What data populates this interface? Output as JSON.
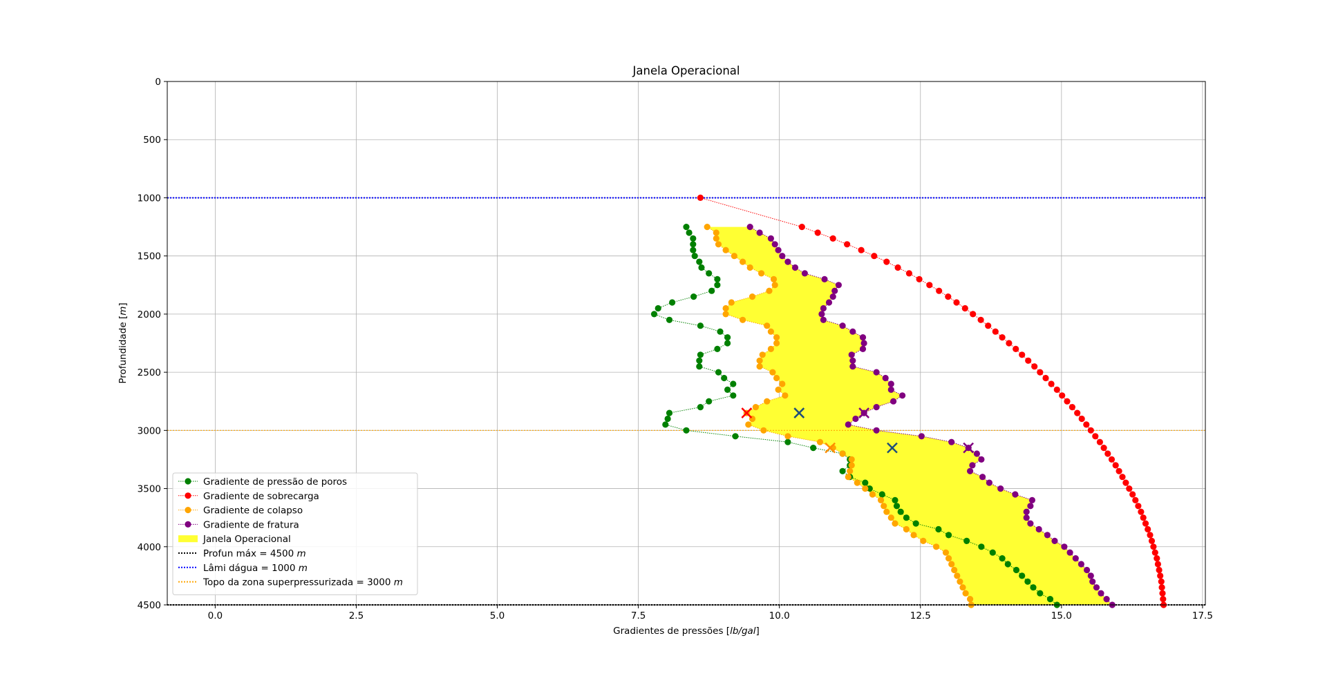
{
  "chart_data": {
    "type": "line",
    "title": "Janela Operacional",
    "xlabel": "Gradientes de pressões [lb/gal]",
    "ylabel": "Profundidade [m]",
    "xlim": [
      -0.85,
      17.55
    ],
    "ylim": [
      4500,
      0
    ],
    "y_inverted": true,
    "grid": true,
    "legend_position": "lower-left",
    "x_ticks": [
      "0.0",
      "2.5",
      "5.0",
      "7.5",
      "10.0",
      "12.5",
      "15.0",
      "17.5"
    ],
    "x_tick_values": [
      0,
      2.5,
      5,
      7.5,
      10,
      12.5,
      15,
      17.5
    ],
    "y_ticks": [
      "0",
      "500",
      "1000",
      "1500",
      "2000",
      "2500",
      "3000",
      "3500",
      "4000",
      "4500"
    ],
    "y_tick_values": [
      0,
      500,
      1000,
      1500,
      2000,
      2500,
      3000,
      3500,
      4000,
      4500
    ],
    "series": [
      {
        "name": "Gradiente de pressão de poros",
        "color": "#008000",
        "marker": "circle",
        "line": "dotted",
        "points": [
          [
            8.35,
            1250
          ],
          [
            8.4,
            1300
          ],
          [
            8.47,
            1350
          ],
          [
            8.47,
            1400
          ],
          [
            8.47,
            1450
          ],
          [
            8.5,
            1500
          ],
          [
            8.58,
            1550
          ],
          [
            8.62,
            1600
          ],
          [
            8.75,
            1650
          ],
          [
            8.9,
            1700
          ],
          [
            8.9,
            1750
          ],
          [
            8.8,
            1800
          ],
          [
            8.48,
            1850
          ],
          [
            8.1,
            1900
          ],
          [
            7.85,
            1950
          ],
          [
            7.78,
            2000
          ],
          [
            8.05,
            2050
          ],
          [
            8.6,
            2100
          ],
          [
            8.95,
            2150
          ],
          [
            9.08,
            2200
          ],
          [
            9.08,
            2250
          ],
          [
            8.9,
            2300
          ],
          [
            8.6,
            2350
          ],
          [
            8.58,
            2400
          ],
          [
            8.58,
            2450
          ],
          [
            8.92,
            2500
          ],
          [
            9.02,
            2550
          ],
          [
            9.18,
            2600
          ],
          [
            9.08,
            2650
          ],
          [
            9.18,
            2700
          ],
          [
            8.75,
            2750
          ],
          [
            8.6,
            2800
          ],
          [
            8.05,
            2850
          ],
          [
            8.02,
            2900
          ],
          [
            7.98,
            2950
          ],
          [
            8.35,
            3000
          ],
          [
            9.22,
            3050
          ],
          [
            10.15,
            3100
          ],
          [
            10.6,
            3150
          ],
          [
            11.12,
            3200
          ],
          [
            11.25,
            3250
          ],
          [
            11.25,
            3300
          ],
          [
            11.12,
            3350
          ],
          [
            11.25,
            3400
          ],
          [
            11.52,
            3450
          ],
          [
            11.6,
            3500
          ],
          [
            11.82,
            3550
          ],
          [
            12.05,
            3600
          ],
          [
            12.08,
            3650
          ],
          [
            12.15,
            3700
          ],
          [
            12.25,
            3750
          ],
          [
            12.42,
            3800
          ],
          [
            12.82,
            3850
          ],
          [
            13.0,
            3900
          ],
          [
            13.32,
            3950
          ],
          [
            13.58,
            4000
          ],
          [
            13.78,
            4050
          ],
          [
            13.95,
            4100
          ],
          [
            14.05,
            4150
          ],
          [
            14.2,
            4200
          ],
          [
            14.3,
            4250
          ],
          [
            14.4,
            4300
          ],
          [
            14.5,
            4350
          ],
          [
            14.62,
            4400
          ],
          [
            14.8,
            4450
          ],
          [
            14.92,
            4500
          ]
        ]
      },
      {
        "name": "Gradiente de sobrecarga",
        "color": "#ff0000",
        "marker": "circle",
        "line": "dotted",
        "points": [
          [
            8.6,
            1000
          ],
          [
            10.4,
            1250
          ],
          [
            10.68,
            1300
          ],
          [
            10.95,
            1350
          ],
          [
            11.2,
            1400
          ],
          [
            11.45,
            1450
          ],
          [
            11.68,
            1500
          ],
          [
            11.9,
            1550
          ],
          [
            12.1,
            1600
          ],
          [
            12.3,
            1650
          ],
          [
            12.48,
            1700
          ],
          [
            12.66,
            1750
          ],
          [
            12.83,
            1800
          ],
          [
            12.99,
            1850
          ],
          [
            13.14,
            1900
          ],
          [
            13.29,
            1950
          ],
          [
            13.43,
            2000
          ],
          [
            13.57,
            2050
          ],
          [
            13.7,
            2100
          ],
          [
            13.83,
            2150
          ],
          [
            13.95,
            2200
          ],
          [
            14.07,
            2250
          ],
          [
            14.19,
            2300
          ],
          [
            14.3,
            2350
          ],
          [
            14.41,
            2400
          ],
          [
            14.52,
            2450
          ],
          [
            14.62,
            2500
          ],
          [
            14.72,
            2550
          ],
          [
            14.82,
            2600
          ],
          [
            14.92,
            2650
          ],
          [
            15.01,
            2700
          ],
          [
            15.1,
            2750
          ],
          [
            15.19,
            2800
          ],
          [
            15.28,
            2850
          ],
          [
            15.36,
            2900
          ],
          [
            15.44,
            2950
          ],
          [
            15.52,
            3000
          ],
          [
            15.6,
            3050
          ],
          [
            15.68,
            3100
          ],
          [
            15.75,
            3150
          ],
          [
            15.82,
            3200
          ],
          [
            15.89,
            3250
          ],
          [
            15.96,
            3300
          ],
          [
            16.02,
            3350
          ],
          [
            16.08,
            3400
          ],
          [
            16.14,
            3450
          ],
          [
            16.2,
            3500
          ],
          [
            16.26,
            3550
          ],
          [
            16.31,
            3600
          ],
          [
            16.36,
            3650
          ],
          [
            16.41,
            3700
          ],
          [
            16.45,
            3750
          ],
          [
            16.49,
            3800
          ],
          [
            16.53,
            3850
          ],
          [
            16.57,
            3900
          ],
          [
            16.6,
            3950
          ],
          [
            16.63,
            4000
          ],
          [
            16.66,
            4050
          ],
          [
            16.69,
            4100
          ],
          [
            16.71,
            4150
          ],
          [
            16.73,
            4200
          ],
          [
            16.75,
            4250
          ],
          [
            16.77,
            4300
          ],
          [
            16.78,
            4350
          ],
          [
            16.79,
            4400
          ],
          [
            16.8,
            4450
          ],
          [
            16.81,
            4500
          ]
        ]
      },
      {
        "name": "Gradiente de colapso",
        "color": "#ffa500",
        "marker": "circle",
        "line": "dotted",
        "points": [
          [
            8.72,
            1250
          ],
          [
            8.88,
            1300
          ],
          [
            8.88,
            1350
          ],
          [
            8.92,
            1400
          ],
          [
            9.05,
            1450
          ],
          [
            9.2,
            1500
          ],
          [
            9.35,
            1550
          ],
          [
            9.48,
            1600
          ],
          [
            9.68,
            1650
          ],
          [
            9.9,
            1700
          ],
          [
            9.92,
            1750
          ],
          [
            9.82,
            1800
          ],
          [
            9.52,
            1850
          ],
          [
            9.15,
            1900
          ],
          [
            9.05,
            1950
          ],
          [
            9.05,
            2000
          ],
          [
            9.35,
            2050
          ],
          [
            9.78,
            2100
          ],
          [
            9.85,
            2150
          ],
          [
            9.95,
            2200
          ],
          [
            9.95,
            2250
          ],
          [
            9.85,
            2300
          ],
          [
            9.7,
            2350
          ],
          [
            9.65,
            2400
          ],
          [
            9.65,
            2450
          ],
          [
            9.88,
            2500
          ],
          [
            9.95,
            2550
          ],
          [
            10.05,
            2600
          ],
          [
            9.98,
            2650
          ],
          [
            10.1,
            2700
          ],
          [
            9.78,
            2750
          ],
          [
            9.58,
            2800
          ],
          [
            9.42,
            2850
          ],
          [
            9.52,
            2900
          ],
          [
            9.45,
            2950
          ],
          [
            9.72,
            3000
          ],
          [
            10.15,
            3050
          ],
          [
            10.72,
            3100
          ],
          [
            10.95,
            3150
          ],
          [
            11.12,
            3200
          ],
          [
            11.28,
            3250
          ],
          [
            11.28,
            3300
          ],
          [
            11.25,
            3350
          ],
          [
            11.22,
            3400
          ],
          [
            11.38,
            3450
          ],
          [
            11.52,
            3500
          ],
          [
            11.65,
            3550
          ],
          [
            11.8,
            3600
          ],
          [
            11.85,
            3650
          ],
          [
            11.9,
            3700
          ],
          [
            11.98,
            3750
          ],
          [
            12.05,
            3800
          ],
          [
            12.25,
            3850
          ],
          [
            12.38,
            3900
          ],
          [
            12.55,
            3950
          ],
          [
            12.78,
            4000
          ],
          [
            12.95,
            4050
          ],
          [
            13.0,
            4100
          ],
          [
            13.05,
            4150
          ],
          [
            13.1,
            4200
          ],
          [
            13.15,
            4250
          ],
          [
            13.2,
            4300
          ],
          [
            13.25,
            4350
          ],
          [
            13.3,
            4400
          ],
          [
            13.38,
            4450
          ],
          [
            13.4,
            4500
          ]
        ]
      },
      {
        "name": "Gradiente de fratura",
        "color": "#800080",
        "marker": "circle",
        "line": "dotted",
        "points": [
          [
            9.48,
            1250
          ],
          [
            9.65,
            1300
          ],
          [
            9.85,
            1350
          ],
          [
            9.92,
            1400
          ],
          [
            9.98,
            1450
          ],
          [
            10.05,
            1500
          ],
          [
            10.15,
            1550
          ],
          [
            10.28,
            1600
          ],
          [
            10.45,
            1650
          ],
          [
            10.8,
            1700
          ],
          [
            11.05,
            1750
          ],
          [
            10.98,
            1800
          ],
          [
            10.95,
            1850
          ],
          [
            10.88,
            1900
          ],
          [
            10.78,
            1950
          ],
          [
            10.75,
            2000
          ],
          [
            10.78,
            2050
          ],
          [
            11.12,
            2100
          ],
          [
            11.3,
            2150
          ],
          [
            11.48,
            2200
          ],
          [
            11.5,
            2250
          ],
          [
            11.48,
            2300
          ],
          [
            11.28,
            2350
          ],
          [
            11.3,
            2400
          ],
          [
            11.3,
            2450
          ],
          [
            11.72,
            2500
          ],
          [
            11.88,
            2550
          ],
          [
            11.98,
            2600
          ],
          [
            11.98,
            2650
          ],
          [
            12.18,
            2700
          ],
          [
            12.02,
            2750
          ],
          [
            11.72,
            2800
          ],
          [
            11.5,
            2850
          ],
          [
            11.35,
            2900
          ],
          [
            11.22,
            2950
          ],
          [
            11.72,
            3000
          ],
          [
            12.52,
            3050
          ],
          [
            13.05,
            3100
          ],
          [
            13.35,
            3150
          ],
          [
            13.5,
            3200
          ],
          [
            13.58,
            3250
          ],
          [
            13.42,
            3300
          ],
          [
            13.38,
            3350
          ],
          [
            13.6,
            3400
          ],
          [
            13.72,
            3450
          ],
          [
            13.92,
            3500
          ],
          [
            14.18,
            3550
          ],
          [
            14.48,
            3600
          ],
          [
            14.45,
            3650
          ],
          [
            14.38,
            3700
          ],
          [
            14.38,
            3750
          ],
          [
            14.45,
            3800
          ],
          [
            14.6,
            3850
          ],
          [
            14.75,
            3900
          ],
          [
            14.88,
            3950
          ],
          [
            15.05,
            4000
          ],
          [
            15.15,
            4050
          ],
          [
            15.25,
            4100
          ],
          [
            15.35,
            4150
          ],
          [
            15.45,
            4200
          ],
          [
            15.52,
            4250
          ],
          [
            15.55,
            4300
          ],
          [
            15.62,
            4350
          ],
          [
            15.7,
            4400
          ],
          [
            15.8,
            4450
          ],
          [
            15.9,
            4500
          ]
        ]
      }
    ],
    "fill_between": {
      "name": "Janela Operacional",
      "color": "#ffff33",
      "lower": "Gradiente de colapso",
      "upper": "Gradiente de fratura",
      "from_depth": 1250,
      "to_depth": 4500
    },
    "hlines": [
      {
        "name": "Profun máx = 4500 m",
        "label_text": "Profun máx = 4500",
        "label_unit": "m",
        "y": 4500,
        "color": "#000000"
      },
      {
        "name": "Lâmi dágua = 1000 m",
        "label_text": "Lâmi dágua = 1000",
        "label_unit": "m",
        "y": 1000,
        "color": "#0000ff"
      },
      {
        "name": "Topo da zona superpressurizada = 3000 m",
        "label_text": "Topo da zona superpressurizada = 3000",
        "label_unit": "m",
        "y": 3000,
        "color": "#ffa500"
      }
    ],
    "annotations": {
      "x_markers": [
        {
          "x": 9.42,
          "y": 2850,
          "color": "#ff0000"
        },
        {
          "x": 10.35,
          "y": 2850,
          "color": "#1f4e79"
        },
        {
          "x": 11.5,
          "y": 2850,
          "color": "#800080"
        },
        {
          "x": 10.9,
          "y": 3150,
          "color": "#ff8c00"
        },
        {
          "x": 12.0,
          "y": 3150,
          "color": "#1f4e79"
        },
        {
          "x": 13.35,
          "y": 3150,
          "color": "#800080"
        }
      ]
    }
  }
}
